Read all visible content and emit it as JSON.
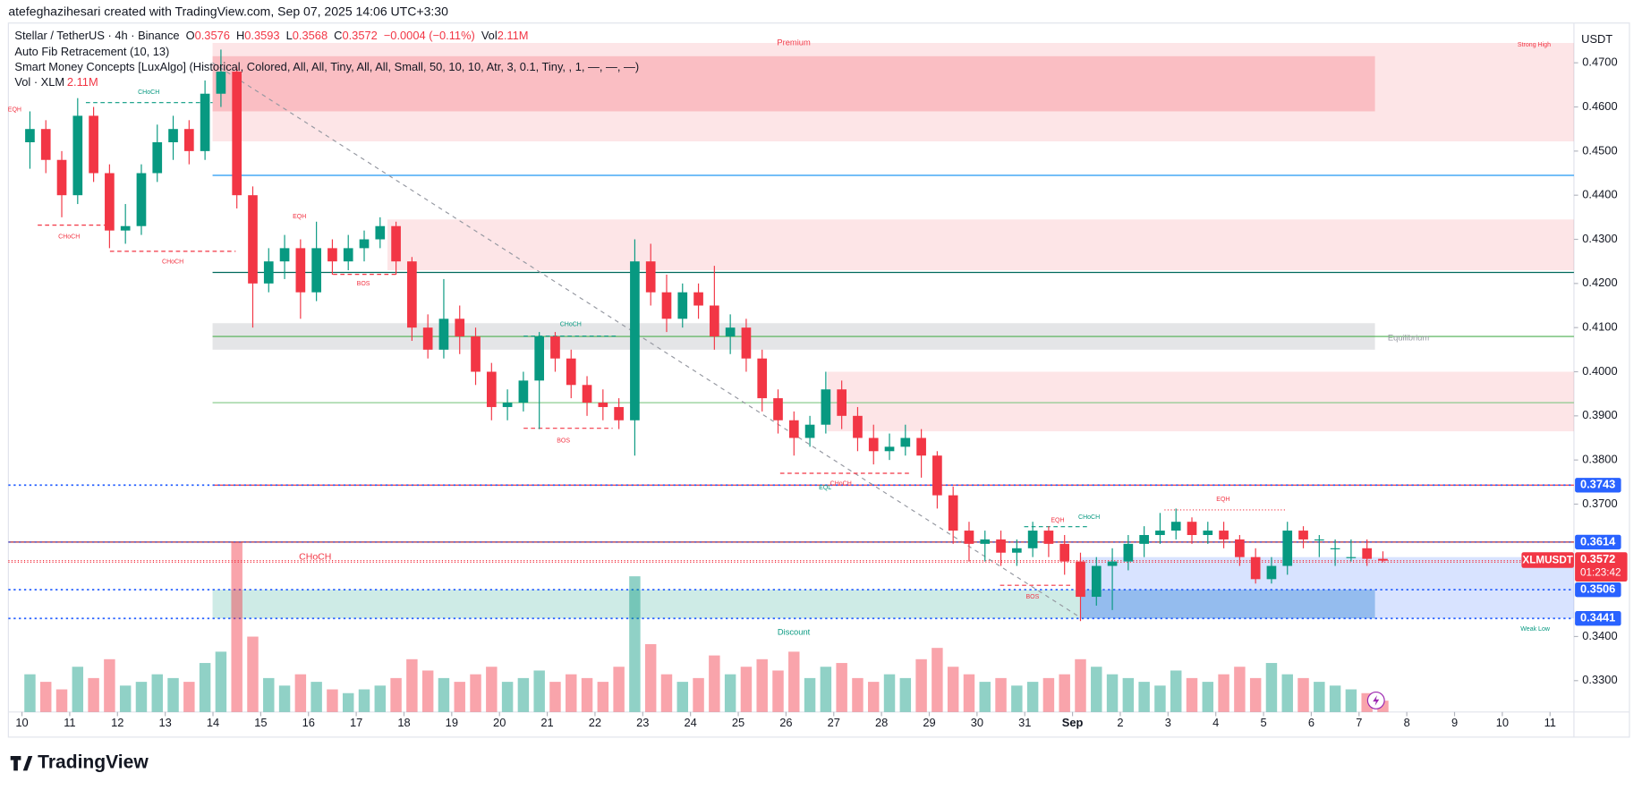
{
  "header": {
    "credit": "atefeghazihesari created with TradingView.com, Sep 07, 2025 14:06 UTC+3:30",
    "brand": "TradingView"
  },
  "chart_data": {
    "type": "candlestick",
    "symbol": "Stellar / TetherUS · 4h · Binance",
    "ohlc_letters": [
      "O",
      "H",
      "L",
      "C"
    ],
    "change": "−0.0004 (−0.11%)",
    "vol_prefix": "Vol",
    "vol_value": "2.11M",
    "indicators": [
      "Auto Fib Retracement (10, 13)",
      "Smart Money Concepts [LuxAlgo] (Historical, Colored, All, All, Tiny, All, All, Small, 50, 10, 10, Atr, 3, 0.1, Tiny, , 1, —, —, —)",
      "Vol · XLM"
    ],
    "currency": "USDT",
    "up_color": "#089981",
    "down_color": "#f23645",
    "open": [
      0.452,
      0.455,
      0.448,
      0.44,
      0.458,
      0.445,
      0.432,
      0.433,
      0.445,
      0.452,
      0.455,
      0.45,
      0.463,
      0.468,
      0.44,
      0.42,
      0.425,
      0.428,
      0.418,
      0.428,
      0.425,
      0.428,
      0.43,
      0.433,
      0.425,
      0.41,
      0.405,
      0.412,
      0.408,
      0.4,
      0.392,
      0.393,
      0.398,
      0.408,
      0.403,
      0.397,
      0.393,
      0.392,
      0.389,
      0.425,
      0.418,
      0.412,
      0.418,
      0.415,
      0.408,
      0.41,
      0.403,
      0.394,
      0.389,
      0.385,
      0.388,
      0.396,
      0.39,
      0.385,
      0.382,
      0.383,
      0.385,
      0.381,
      0.372,
      0.364,
      0.361,
      0.362,
      0.359,
      0.36,
      0.364,
      0.361,
      0.357,
      0.349,
      0.356,
      0.357,
      0.361,
      0.363,
      0.364,
      0.366,
      0.363,
      0.364,
      0.362,
      0.358,
      0.353,
      0.356,
      0.364,
      0.362,
      0.36,
      0.358,
      0.36,
      0.3576
    ],
    "high": [
      0.459,
      0.457,
      0.45,
      0.462,
      0.46,
      0.447,
      0.438,
      0.447,
      0.456,
      0.458,
      0.457,
      0.466,
      0.473,
      0.469,
      0.442,
      0.428,
      0.431,
      0.43,
      0.434,
      0.43,
      0.431,
      0.432,
      0.435,
      0.434,
      0.426,
      0.413,
      0.421,
      0.415,
      0.41,
      0.402,
      0.396,
      0.4,
      0.409,
      0.409,
      0.405,
      0.399,
      0.396,
      0.394,
      0.43,
      0.429,
      0.422,
      0.42,
      0.42,
      0.424,
      0.413,
      0.412,
      0.405,
      0.396,
      0.391,
      0.39,
      0.4,
      0.398,
      0.392,
      0.388,
      0.386,
      0.388,
      0.387,
      0.382,
      0.374,
      0.366,
      0.364,
      0.364,
      0.362,
      0.366,
      0.365,
      0.363,
      0.359,
      0.358,
      0.36,
      0.363,
      0.365,
      0.368,
      0.369,
      0.367,
      0.366,
      0.366,
      0.363,
      0.36,
      0.358,
      0.366,
      0.365,
      0.363,
      0.362,
      0.362,
      0.362,
      0.3593
    ],
    "low": [
      0.446,
      0.445,
      0.435,
      0.438,
      0.443,
      0.428,
      0.429,
      0.431,
      0.443,
      0.448,
      0.447,
      0.448,
      0.46,
      0.437,
      0.41,
      0.418,
      0.421,
      0.412,
      0.416,
      0.422,
      0.423,
      0.425,
      0.428,
      0.422,
      0.407,
      0.403,
      0.403,
      0.404,
      0.397,
      0.389,
      0.389,
      0.391,
      0.387,
      0.4,
      0.394,
      0.39,
      0.389,
      0.387,
      0.381,
      0.415,
      0.409,
      0.41,
      0.412,
      0.405,
      0.404,
      0.4,
      0.391,
      0.386,
      0.381,
      0.383,
      0.386,
      0.387,
      0.382,
      0.379,
      0.38,
      0.381,
      0.376,
      0.369,
      0.361,
      0.357,
      0.357,
      0.356,
      0.356,
      0.358,
      0.358,
      0.354,
      0.3435,
      0.347,
      0.346,
      0.355,
      0.358,
      0.361,
      0.362,
      0.361,
      0.361,
      0.36,
      0.356,
      0.352,
      0.352,
      0.354,
      0.36,
      0.358,
      0.356,
      0.357,
      0.356,
      0.3568
    ],
    "close": [
      0.455,
      0.448,
      0.44,
      0.458,
      0.445,
      0.432,
      0.433,
      0.445,
      0.452,
      0.455,
      0.45,
      0.463,
      0.468,
      0.44,
      0.42,
      0.425,
      0.428,
      0.418,
      0.428,
      0.425,
      0.428,
      0.43,
      0.433,
      0.425,
      0.41,
      0.405,
      0.412,
      0.408,
      0.4,
      0.392,
      0.393,
      0.398,
      0.408,
      0.403,
      0.397,
      0.393,
      0.392,
      0.389,
      0.425,
      0.418,
      0.412,
      0.418,
      0.415,
      0.408,
      0.41,
      0.403,
      0.394,
      0.389,
      0.385,
      0.388,
      0.396,
      0.39,
      0.385,
      0.382,
      0.383,
      0.385,
      0.381,
      0.372,
      0.364,
      0.361,
      0.362,
      0.359,
      0.36,
      0.364,
      0.361,
      0.357,
      0.349,
      0.356,
      0.357,
      0.361,
      0.363,
      0.364,
      0.366,
      0.363,
      0.364,
      0.362,
      0.358,
      0.353,
      0.356,
      0.364,
      0.362,
      0.362,
      0.36,
      0.358,
      0.3576,
      0.3572
    ],
    "volume": [
      10,
      8,
      6,
      12,
      9,
      14,
      7,
      8,
      10,
      9,
      8,
      13,
      16,
      45,
      20,
      9,
      7,
      10,
      8,
      6,
      5,
      6,
      7,
      9,
      14,
      11,
      9,
      8,
      10,
      12,
      8,
      9,
      11,
      8,
      10,
      9,
      8,
      12,
      36,
      18,
      10,
      8,
      9,
      15,
      10,
      12,
      14,
      11,
      16,
      9,
      12,
      13,
      9,
      8,
      10,
      9,
      14,
      17,
      12,
      10,
      8,
      9,
      7,
      8,
      9,
      10,
      14,
      12,
      10,
      9,
      8,
      7,
      11,
      9,
      8,
      10,
      12,
      9,
      13,
      10,
      9,
      8,
      7,
      6,
      5,
      3
    ],
    "xlim": [
      -1.38,
      97.5
    ],
    "xticks": [
      {
        "value": 0,
        "label": "10"
      },
      {
        "value": 3,
        "label": "11"
      },
      {
        "value": 6,
        "label": "12"
      },
      {
        "value": 9,
        "label": "13"
      },
      {
        "value": 12,
        "label": "14"
      },
      {
        "value": 15,
        "label": "15"
      },
      {
        "value": 18,
        "label": "16"
      },
      {
        "value": 21,
        "label": "17"
      },
      {
        "value": 24,
        "label": "18"
      },
      {
        "value": 27,
        "label": "19"
      },
      {
        "value": 30,
        "label": "20"
      },
      {
        "value": 33,
        "label": "21"
      },
      {
        "value": 36,
        "label": "22"
      },
      {
        "value": 39,
        "label": "23"
      },
      {
        "value": 42,
        "label": "24"
      },
      {
        "value": 45,
        "label": "25"
      },
      {
        "value": 48,
        "label": "26"
      },
      {
        "value": 51,
        "label": "27"
      },
      {
        "value": 54,
        "label": "28"
      },
      {
        "value": 57,
        "label": "29"
      },
      {
        "value": 60,
        "label": "30"
      },
      {
        "value": 63,
        "label": "31"
      },
      {
        "value": 66,
        "label": "Sep"
      },
      {
        "value": 69,
        "label": "2"
      },
      {
        "value": 72,
        "label": "3"
      },
      {
        "value": 75,
        "label": "4"
      },
      {
        "value": 78,
        "label": "5"
      },
      {
        "value": 81,
        "label": "6"
      },
      {
        "value": 84,
        "label": "7"
      },
      {
        "value": 87,
        "label": "8"
      },
      {
        "value": 90,
        "label": "9"
      },
      {
        "value": 93,
        "label": "10"
      },
      {
        "value": 96,
        "label": "11"
      }
    ],
    "ylim": [
      0.3229,
      0.4783
    ],
    "yticks": [
      {
        "value": 0.47,
        "label": "0.4700"
      },
      {
        "value": 0.46,
        "label": "0.4600"
      },
      {
        "value": 0.45,
        "label": "0.4500"
      },
      {
        "value": 0.44,
        "label": "0.4400"
      },
      {
        "value": 0.43,
        "label": "0.4300"
      },
      {
        "value": 0.42,
        "label": "0.4200"
      },
      {
        "value": 0.41,
        "label": "0.4100"
      },
      {
        "value": 0.4,
        "label": "0.4000"
      },
      {
        "value": 0.39,
        "label": "0.3900"
      },
      {
        "value": 0.38,
        "label": "0.3800"
      },
      {
        "value": 0.37,
        "label": "0.3700"
      },
      {
        "value": 0.34,
        "label": "0.3400"
      },
      {
        "value": 0.33,
        "label": "0.3300"
      }
    ],
    "zones": [
      {
        "top": 0.4745,
        "bottom": 0.4522,
        "color": "rgba(242,54,69,0.13)"
      },
      {
        "top": 0.4715,
        "bottom": 0.459,
        "color": "rgba(242,54,69,0.22)"
      },
      {
        "top": 0.4345,
        "bottom": 0.423,
        "color": "rgba(242,54,69,0.13)"
      },
      {
        "top": 0.411,
        "bottom": 0.405,
        "color": "rgba(120,123,134,0.2)"
      },
      {
        "top": 0.4,
        "bottom": 0.3865,
        "color": "rgba(242,54,69,0.13)"
      },
      {
        "top": 0.3506,
        "bottom": 0.3441,
        "color": "rgba(8,153,129,0.2)"
      },
      {
        "top": 0.358,
        "bottom": 0.3441,
        "color": "rgba(41,98,255,0.18)"
      },
      {
        "top": 0.3506,
        "bottom": 0.3441,
        "color": "rgba(41,98,255,0.2)"
      }
    ],
    "levels": [
      {
        "value": 0.4445,
        "color": "#2196f3"
      },
      {
        "value": 0.4225,
        "color": "#00695c"
      },
      {
        "value": 0.408,
        "color": "#4caf50"
      },
      {
        "value": 0.393,
        "color": "#81c784"
      },
      {
        "value": 0.3743,
        "color": "#f23645"
      },
      {
        "value": 0.3614,
        "color": "#b22833"
      }
    ],
    "price_tags": [
      0.3743,
      0.3614,
      0.3506,
      0.3441
    ],
    "ticker": "XLMUSDT",
    "countdown": "01:23:42",
    "zone_labels": [
      "Premium",
      "Strong High",
      "Equilibrium",
      "Discount",
      "Weak Low"
    ],
    "structure_labels": [
      "EQH",
      "CHoCH",
      "CHoCH",
      "CHoCH",
      "EQH",
      "BOS",
      "CHoCH",
      "BOS",
      "EQL",
      "CHoCH",
      "EQH",
      "CHoCH",
      "BOS",
      "EQH",
      "CHoCH"
    ]
  }
}
